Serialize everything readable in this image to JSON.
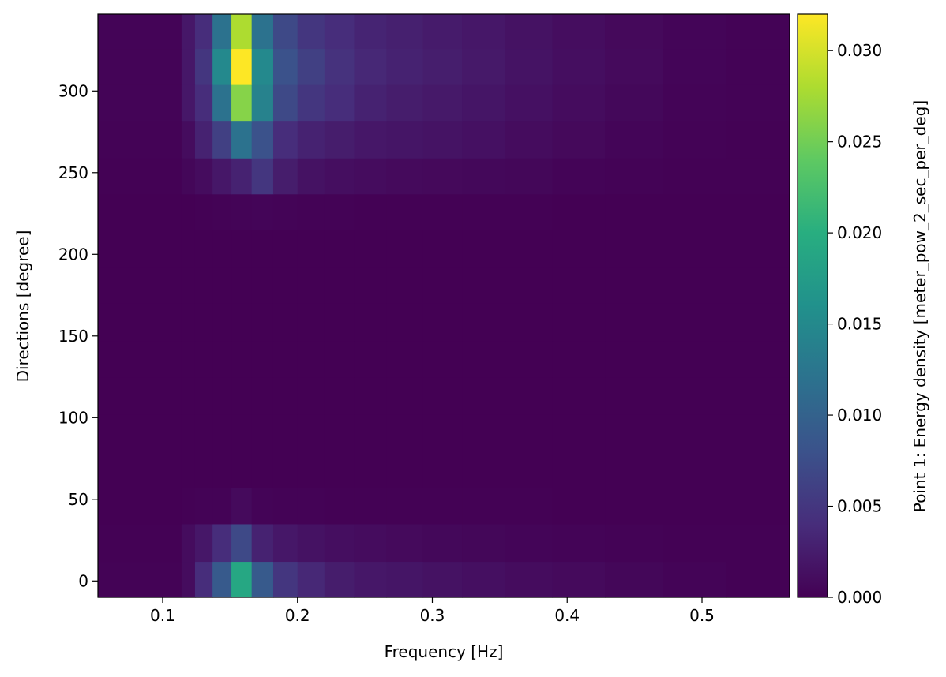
{
  "chart_data": {
    "type": "heatmap",
    "xlabel": "Frequency [Hz]",
    "ylabel": "Directions [degree]",
    "colorbar_label": "Point 1: Energy density [meter_pow_2_sec_per_deg]",
    "colormap": "viridis",
    "xlim": [
      0.052,
      0.565
    ],
    "ylim": [
      -10,
      347
    ],
    "clim": [
      0.0,
      0.032
    ],
    "x_ticks": [
      0.1,
      0.2,
      0.3,
      0.4,
      0.5
    ],
    "x_tick_labels": [
      "0.1",
      "0.2",
      "0.3",
      "0.4",
      "0.5"
    ],
    "y_ticks": [
      0,
      50,
      100,
      150,
      200,
      250,
      300
    ],
    "y_tick_labels": [
      "0",
      "50",
      "100",
      "150",
      "200",
      "250",
      "300"
    ],
    "colorbar_ticks": [
      0.0,
      0.005,
      0.01,
      0.015,
      0.02,
      0.025,
      0.03
    ],
    "colorbar_tick_labels": [
      "0.000",
      "0.005",
      "0.010",
      "0.015",
      "0.020",
      "0.025",
      "0.030"
    ],
    "frequency_edges": [
      0.052,
      0.114,
      0.124,
      0.137,
      0.151,
      0.166,
      0.182,
      0.2,
      0.22,
      0.242,
      0.266,
      0.293,
      0.322,
      0.354,
      0.389,
      0.428,
      0.471,
      0.518,
      0.565
    ],
    "direction_edges": [
      -10,
      12,
      35,
      57,
      80,
      102,
      125,
      147,
      170,
      192,
      215,
      237,
      259,
      282,
      304,
      326,
      347
    ],
    "values": [
      [
        0.0002,
        0.001,
        0.004,
        0.009,
        0.019,
        0.009,
        0.005,
        0.0035,
        0.0025,
        0.002,
        0.0018,
        0.0015,
        0.0013,
        0.001,
        0.0008,
        0.0005,
        0.0003,
        0.0001
      ],
      [
        0.0001,
        0.001,
        0.002,
        0.004,
        0.007,
        0.003,
        0.002,
        0.0015,
        0.0012,
        0.001,
        0.0008,
        0.0006,
        0.0005,
        0.0004,
        0.0003,
        0.0002,
        0.0001,
        0.0001
      ],
      [
        0.0,
        0.0001,
        0.0002,
        0.0002,
        0.0008,
        0.0003,
        0.0002,
        0.0002,
        0.0001,
        0.0001,
        0.0001,
        0.0001,
        0.0001,
        0.0001,
        0.0,
        0.0,
        0.0,
        0.0
      ],
      [
        0.0,
        0.0,
        0.0,
        0.0,
        0.0,
        0.0,
        0.0,
        0.0,
        0.0,
        0.0,
        0.0,
        0.0,
        0.0,
        0.0,
        0.0,
        0.0,
        0.0,
        0.0
      ],
      [
        0.0,
        0.0,
        0.0,
        0.0,
        0.0,
        0.0,
        0.0,
        0.0,
        0.0,
        0.0,
        0.0,
        0.0,
        0.0,
        0.0,
        0.0,
        0.0,
        0.0,
        0.0
      ],
      [
        0.0,
        0.0,
        0.0,
        0.0,
        0.0,
        0.0,
        0.0,
        0.0,
        0.0,
        0.0,
        0.0,
        0.0,
        0.0,
        0.0,
        0.0,
        0.0,
        0.0,
        0.0
      ],
      [
        0.0,
        0.0,
        0.0,
        0.0,
        0.0,
        0.0,
        0.0,
        0.0,
        0.0,
        0.0,
        0.0,
        0.0,
        0.0,
        0.0,
        0.0,
        0.0,
        0.0,
        0.0
      ],
      [
        0.0,
        0.0,
        0.0,
        0.0,
        0.0,
        0.0,
        0.0,
        0.0,
        0.0,
        0.0,
        0.0,
        0.0,
        0.0,
        0.0,
        0.0,
        0.0,
        0.0,
        0.0
      ],
      [
        0.0,
        0.0,
        0.0,
        0.0,
        0.0,
        0.0,
        0.0,
        0.0,
        0.0,
        0.0,
        0.0,
        0.0,
        0.0,
        0.0,
        0.0,
        0.0,
        0.0,
        0.0
      ],
      [
        0.0,
        0.0,
        0.0,
        0.0,
        0.0,
        0.0,
        0.0,
        0.0,
        0.0,
        0.0,
        0.0,
        0.0,
        0.0,
        0.0,
        0.0,
        0.0,
        0.0,
        0.0
      ],
      [
        0.0,
        0.0,
        0.0001,
        0.0002,
        0.0003,
        0.0004,
        0.0003,
        0.0002,
        0.0002,
        0.0001,
        0.0001,
        0.0001,
        0.0001,
        0.0001,
        0.0,
        0.0,
        0.0,
        0.0
      ],
      [
        0.0001,
        0.0005,
        0.001,
        0.002,
        0.003,
        0.005,
        0.0025,
        0.0015,
        0.0012,
        0.001,
        0.0008,
        0.0007,
        0.0006,
        0.0005,
        0.0003,
        0.0002,
        0.0001,
        0.0001
      ],
      [
        0.0002,
        0.001,
        0.003,
        0.006,
        0.012,
        0.008,
        0.004,
        0.003,
        0.0025,
        0.002,
        0.0018,
        0.0016,
        0.0014,
        0.001,
        0.0007,
        0.0004,
        0.0002,
        0.0001
      ],
      [
        0.0003,
        0.002,
        0.004,
        0.012,
        0.026,
        0.014,
        0.007,
        0.005,
        0.004,
        0.003,
        0.0025,
        0.0022,
        0.0018,
        0.0014,
        0.001,
        0.0006,
        0.0003,
        0.0002
      ],
      [
        0.0003,
        0.002,
        0.005,
        0.015,
        0.032,
        0.015,
        0.008,
        0.006,
        0.0045,
        0.0035,
        0.003,
        0.0026,
        0.0022,
        0.0016,
        0.0012,
        0.0008,
        0.0004,
        0.0002
      ],
      [
        0.0003,
        0.002,
        0.004,
        0.012,
        0.028,
        0.012,
        0.007,
        0.005,
        0.004,
        0.0032,
        0.0028,
        0.0024,
        0.002,
        0.0015,
        0.0011,
        0.0007,
        0.0004,
        0.0002
      ]
    ]
  }
}
